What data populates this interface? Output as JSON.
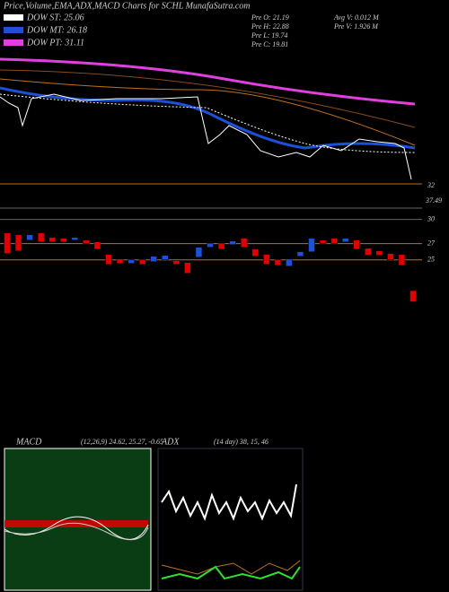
{
  "header": {
    "title": "Price,Volume,EMA,ADX,MACD Charts for SCHL MunafaSutra.com"
  },
  "legend": [
    "DOW ST: 25.06",
    "DOW MT: 26.18",
    "DOW PT: 31.11"
  ],
  "info": [
    "Pre O: 21.19",
    "Pre H: 22.88",
    "Pre L: 19.74",
    "Pre C: 19.81",
    "Avg V: 0.012 M",
    "Pre V: 1.926 M"
  ],
  "price_labels": [
    "32",
    "37.49"
  ],
  "chart_data": {
    "type": "candlestick",
    "open": [
      28.33,
      28.11,
      27.44,
      28.33,
      27.78,
      27.67,
      27.44,
      27.44,
      27.22,
      25.67,
      25.11,
      24.56,
      25.0,
      24.78,
      25.0,
      24.89,
      24.67,
      25.33,
      26.56,
      27.0,
      26.89,
      27.67,
      26.33,
      25.67,
      25.0,
      24.22,
      25.44,
      26.0,
      27.44,
      27.67,
      27.22,
      27.44,
      26.44,
      26.11,
      25.78,
      25.67,
      21.19
    ],
    "close": [
      25.78,
      26.11,
      28.11,
      27.22,
      27.22,
      27.22,
      27.78,
      27.0,
      26.33,
      24.44,
      24.56,
      25.0,
      24.44,
      25.44,
      25.56,
      24.44,
      23.33,
      26.56,
      27.0,
      26.33,
      27.33,
      26.56,
      25.44,
      24.44,
      24.33,
      25.11,
      26.0,
      27.67,
      27.0,
      27.0,
      27.67,
      26.33,
      25.56,
      25.56,
      25.0,
      24.33,
      19.81
    ],
    "up_color": "#1e4fd8",
    "down_color": "#e00000",
    "ylim": [
      17.2,
      31.4
    ],
    "yticks": [
      30,
      27,
      25
    ]
  },
  "macd": {
    "title": "MACD",
    "values": "(12,26,9) 24.62, 25.27, -0.65"
  },
  "adx": {
    "title": "ADX",
    "values": "(14 day) 38, 15, 46"
  }
}
